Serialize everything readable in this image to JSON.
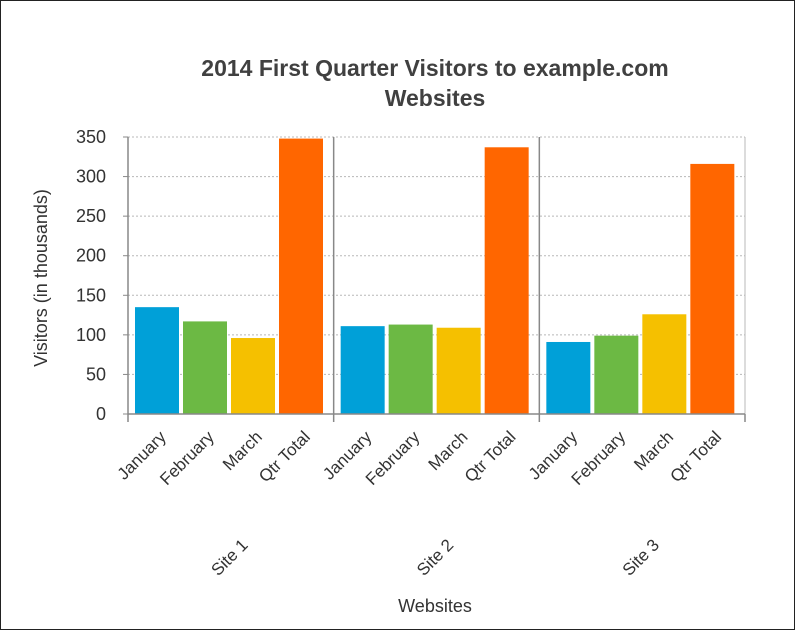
{
  "chart_data": {
    "type": "bar",
    "title_line1": "2014 First Quarter Visitors to example.com",
    "title_line2": "Websites",
    "xlabel": "Websites",
    "ylabel": "Visitors (in thousands)",
    "ylim": [
      0,
      350
    ],
    "yticks": [
      "0",
      "50",
      "100",
      "150",
      "200",
      "250",
      "300",
      "350"
    ],
    "ytick_values": [
      0,
      50,
      100,
      150,
      200,
      250,
      300,
      350
    ],
    "grid": true,
    "groups": [
      {
        "name": "Site 1",
        "categories": [
          "January",
          "February",
          "March",
          "Qtr Total"
        ],
        "values": [
          135,
          117,
          96,
          348
        ]
      },
      {
        "name": "Site 2",
        "categories": [
          "January",
          "February",
          "March",
          "Qtr Total"
        ],
        "values": [
          111,
          113,
          109,
          337
        ]
      },
      {
        "name": "Site 3",
        "categories": [
          "January",
          "February",
          "March",
          "Qtr Total"
        ],
        "values": [
          91,
          99,
          126,
          316
        ]
      }
    ],
    "colors": {
      "January": "#00a0d8",
      "February": "#6cb944",
      "March": "#f5c000",
      "Qtr Total": "#ff6600"
    }
  }
}
